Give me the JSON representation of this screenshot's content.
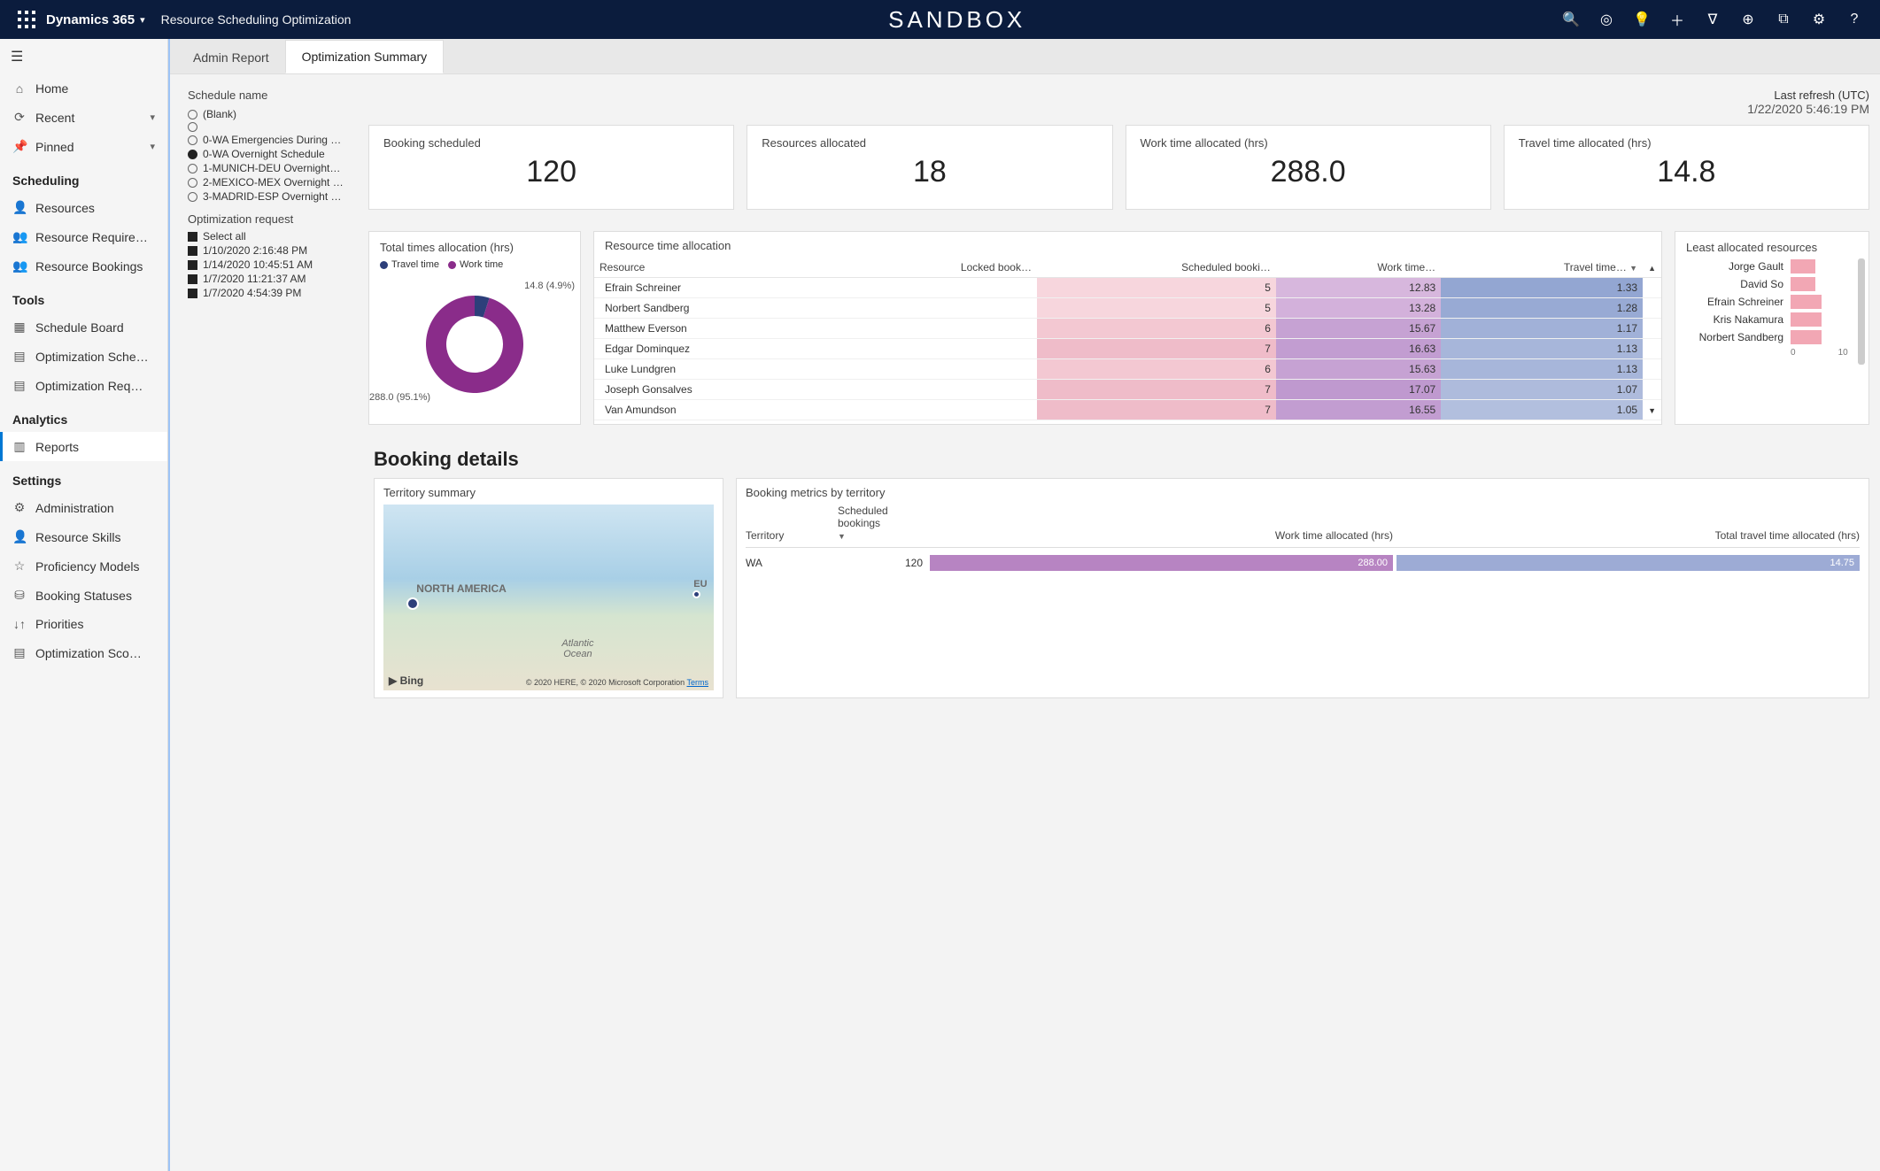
{
  "header": {
    "app_name": "Dynamics 365",
    "subtitle": "Resource Scheduling Optimization",
    "center_label": "SANDBOX"
  },
  "tabs": [
    {
      "label": "Admin Report",
      "active": false
    },
    {
      "label": "Optimization Summary",
      "active": true
    }
  ],
  "sidebar": {
    "top": [
      {
        "icon": "⌂",
        "label": "Home",
        "chev": false
      },
      {
        "icon": "⟳",
        "label": "Recent",
        "chev": true
      },
      {
        "icon": "📌",
        "label": "Pinned",
        "chev": true
      }
    ],
    "sections": [
      {
        "title": "Scheduling",
        "items": [
          {
            "icon": "👤",
            "label": "Resources"
          },
          {
            "icon": "👥",
            "label": "Resource Require…"
          },
          {
            "icon": "👥",
            "label": "Resource Bookings"
          }
        ]
      },
      {
        "title": "Tools",
        "items": [
          {
            "icon": "▦",
            "label": "Schedule Board"
          },
          {
            "icon": "▤",
            "label": "Optimization Sche…"
          },
          {
            "icon": "▤",
            "label": "Optimization Req…"
          }
        ]
      },
      {
        "title": "Analytics",
        "items": [
          {
            "icon": "▥",
            "label": "Reports",
            "active": true
          }
        ]
      },
      {
        "title": "Settings",
        "items": [
          {
            "icon": "⚙",
            "label": "Administration"
          },
          {
            "icon": "👤",
            "label": "Resource Skills"
          },
          {
            "icon": "☆",
            "label": "Proficiency Models"
          },
          {
            "icon": "⛁",
            "label": "Booking Statuses"
          },
          {
            "icon": "↓↑",
            "label": "Priorities"
          },
          {
            "icon": "▤",
            "label": "Optimization Sco…"
          }
        ]
      }
    ]
  },
  "filters": {
    "schedule_label": "Schedule name",
    "schedules": [
      {
        "label": "(Blank)",
        "selected": false
      },
      {
        "label": "",
        "selected": false
      },
      {
        "label": "0-WA Emergencies During …",
        "selected": false
      },
      {
        "label": "0-WA Overnight Schedule",
        "selected": true
      },
      {
        "label": "1-MUNICH-DEU Overnight…",
        "selected": false
      },
      {
        "label": "2-MEXICO-MEX Overnight …",
        "selected": false
      },
      {
        "label": "3-MADRID-ESP Overnight …",
        "selected": false
      }
    ],
    "request_label": "Optimization request",
    "requests": [
      {
        "label": "Select all"
      },
      {
        "label": "1/10/2020 2:16:48 PM"
      },
      {
        "label": "1/14/2020 10:45:51 AM"
      },
      {
        "label": "1/7/2020 11:21:37 AM"
      },
      {
        "label": "1/7/2020 4:54:39 PM"
      }
    ]
  },
  "refresh": {
    "title": "Last refresh (UTC)",
    "time": "1/22/2020 5:46:19 PM"
  },
  "kpis": [
    {
      "label": "Booking scheduled",
      "value": "120"
    },
    {
      "label": "Resources allocated",
      "value": "18"
    },
    {
      "label": "Work time allocated (hrs)",
      "value": "288.0"
    },
    {
      "label": "Travel time allocated (hrs)",
      "value": "14.8"
    }
  ],
  "donut": {
    "title": "Total times allocation (hrs)",
    "legend": [
      {
        "name": "Travel time",
        "color": "#2d3f7a"
      },
      {
        "name": "Work time",
        "color": "#8a2c8a"
      }
    ],
    "values": {
      "travel_label": "14.8 (4.9%)",
      "work_label": "288.0 (95.1%)"
    },
    "travel_pct": 4.9,
    "inner_color": "#ffffff",
    "size": 130
  },
  "resource_table": {
    "title": "Resource time allocation",
    "columns": [
      "Resource",
      "Locked book…",
      "Scheduled booki…",
      "Work time…",
      "Travel time…"
    ],
    "sort_col": 4,
    "rows": [
      {
        "name": "Efrain Schreiner",
        "lock": "",
        "sched": "5",
        "work": "12.83",
        "travel": "1.33",
        "sched_bg": "#f7d6dd",
        "work_bg": "#d7b7dd",
        "travel_bg": "#93a6d2"
      },
      {
        "name": "Norbert Sandberg",
        "lock": "",
        "sched": "5",
        "work": "13.28",
        "travel": "1.28",
        "sched_bg": "#f7d6dd",
        "work_bg": "#d3b1db",
        "travel_bg": "#98aad4"
      },
      {
        "name": "Matthew Everson",
        "lock": "",
        "sched": "6",
        "work": "15.67",
        "travel": "1.17",
        "sched_bg": "#f3c8d2",
        "work_bg": "#c6a2d3",
        "travel_bg": "#a1b1d8"
      },
      {
        "name": "Edgar Dominquez",
        "lock": "",
        "sched": "7",
        "work": "16.63",
        "travel": "1.13",
        "sched_bg": "#efbcc9",
        "work_bg": "#c29dd1",
        "travel_bg": "#a7b6da"
      },
      {
        "name": "Luke Lundgren",
        "lock": "",
        "sched": "6",
        "work": "15.63",
        "travel": "1.13",
        "sched_bg": "#f3c8d2",
        "work_bg": "#c6a2d3",
        "travel_bg": "#a7b6da"
      },
      {
        "name": "Joseph Gonsalves",
        "lock": "",
        "sched": "7",
        "work": "17.07",
        "travel": "1.07",
        "sched_bg": "#efbcc9",
        "work_bg": "#bf99cf",
        "travel_bg": "#aebbdc"
      },
      {
        "name": "Van Amundson",
        "lock": "",
        "sched": "7",
        "work": "16.55",
        "travel": "1.05",
        "sched_bg": "#efbcc9",
        "work_bg": "#c29dd1",
        "travel_bg": "#b2bfde"
      }
    ]
  },
  "least_allocated": {
    "title": "Least allocated resources",
    "bar_color": "#f2a7b4",
    "axis_labels": [
      "0",
      "10"
    ],
    "rows": [
      {
        "name": "Jorge Gault",
        "value": 4
      },
      {
        "name": "David So",
        "value": 4
      },
      {
        "name": "Efrain Schreiner",
        "value": 5
      },
      {
        "name": "Kris Nakamura",
        "value": 5
      },
      {
        "name": "Norbert Sandberg",
        "value": 5
      }
    ],
    "max": 10
  },
  "booking_section_title": "Booking details",
  "territory_summary": {
    "title": "Territory summary",
    "na_label": "NORTH AMERICA",
    "ocean_label": "Atlantic\nOcean",
    "eu_label": "EU",
    "bing_label": "▶ Bing",
    "attrib": "© 2020 HERE, © 2020 Microsoft Corporation ",
    "terms": "Terms"
  },
  "metrics": {
    "title": "Booking metrics by territory",
    "columns": [
      "Territory",
      "Scheduled bookings",
      "Work time allocated (hrs)",
      "Total travel time allocated (hrs)"
    ],
    "row": {
      "territory": "WA",
      "scheduled": "120",
      "work_value": "288.00",
      "work_bg": "#b784c2",
      "travel_value": "14.75",
      "travel_bg": "#9dabd5"
    }
  }
}
